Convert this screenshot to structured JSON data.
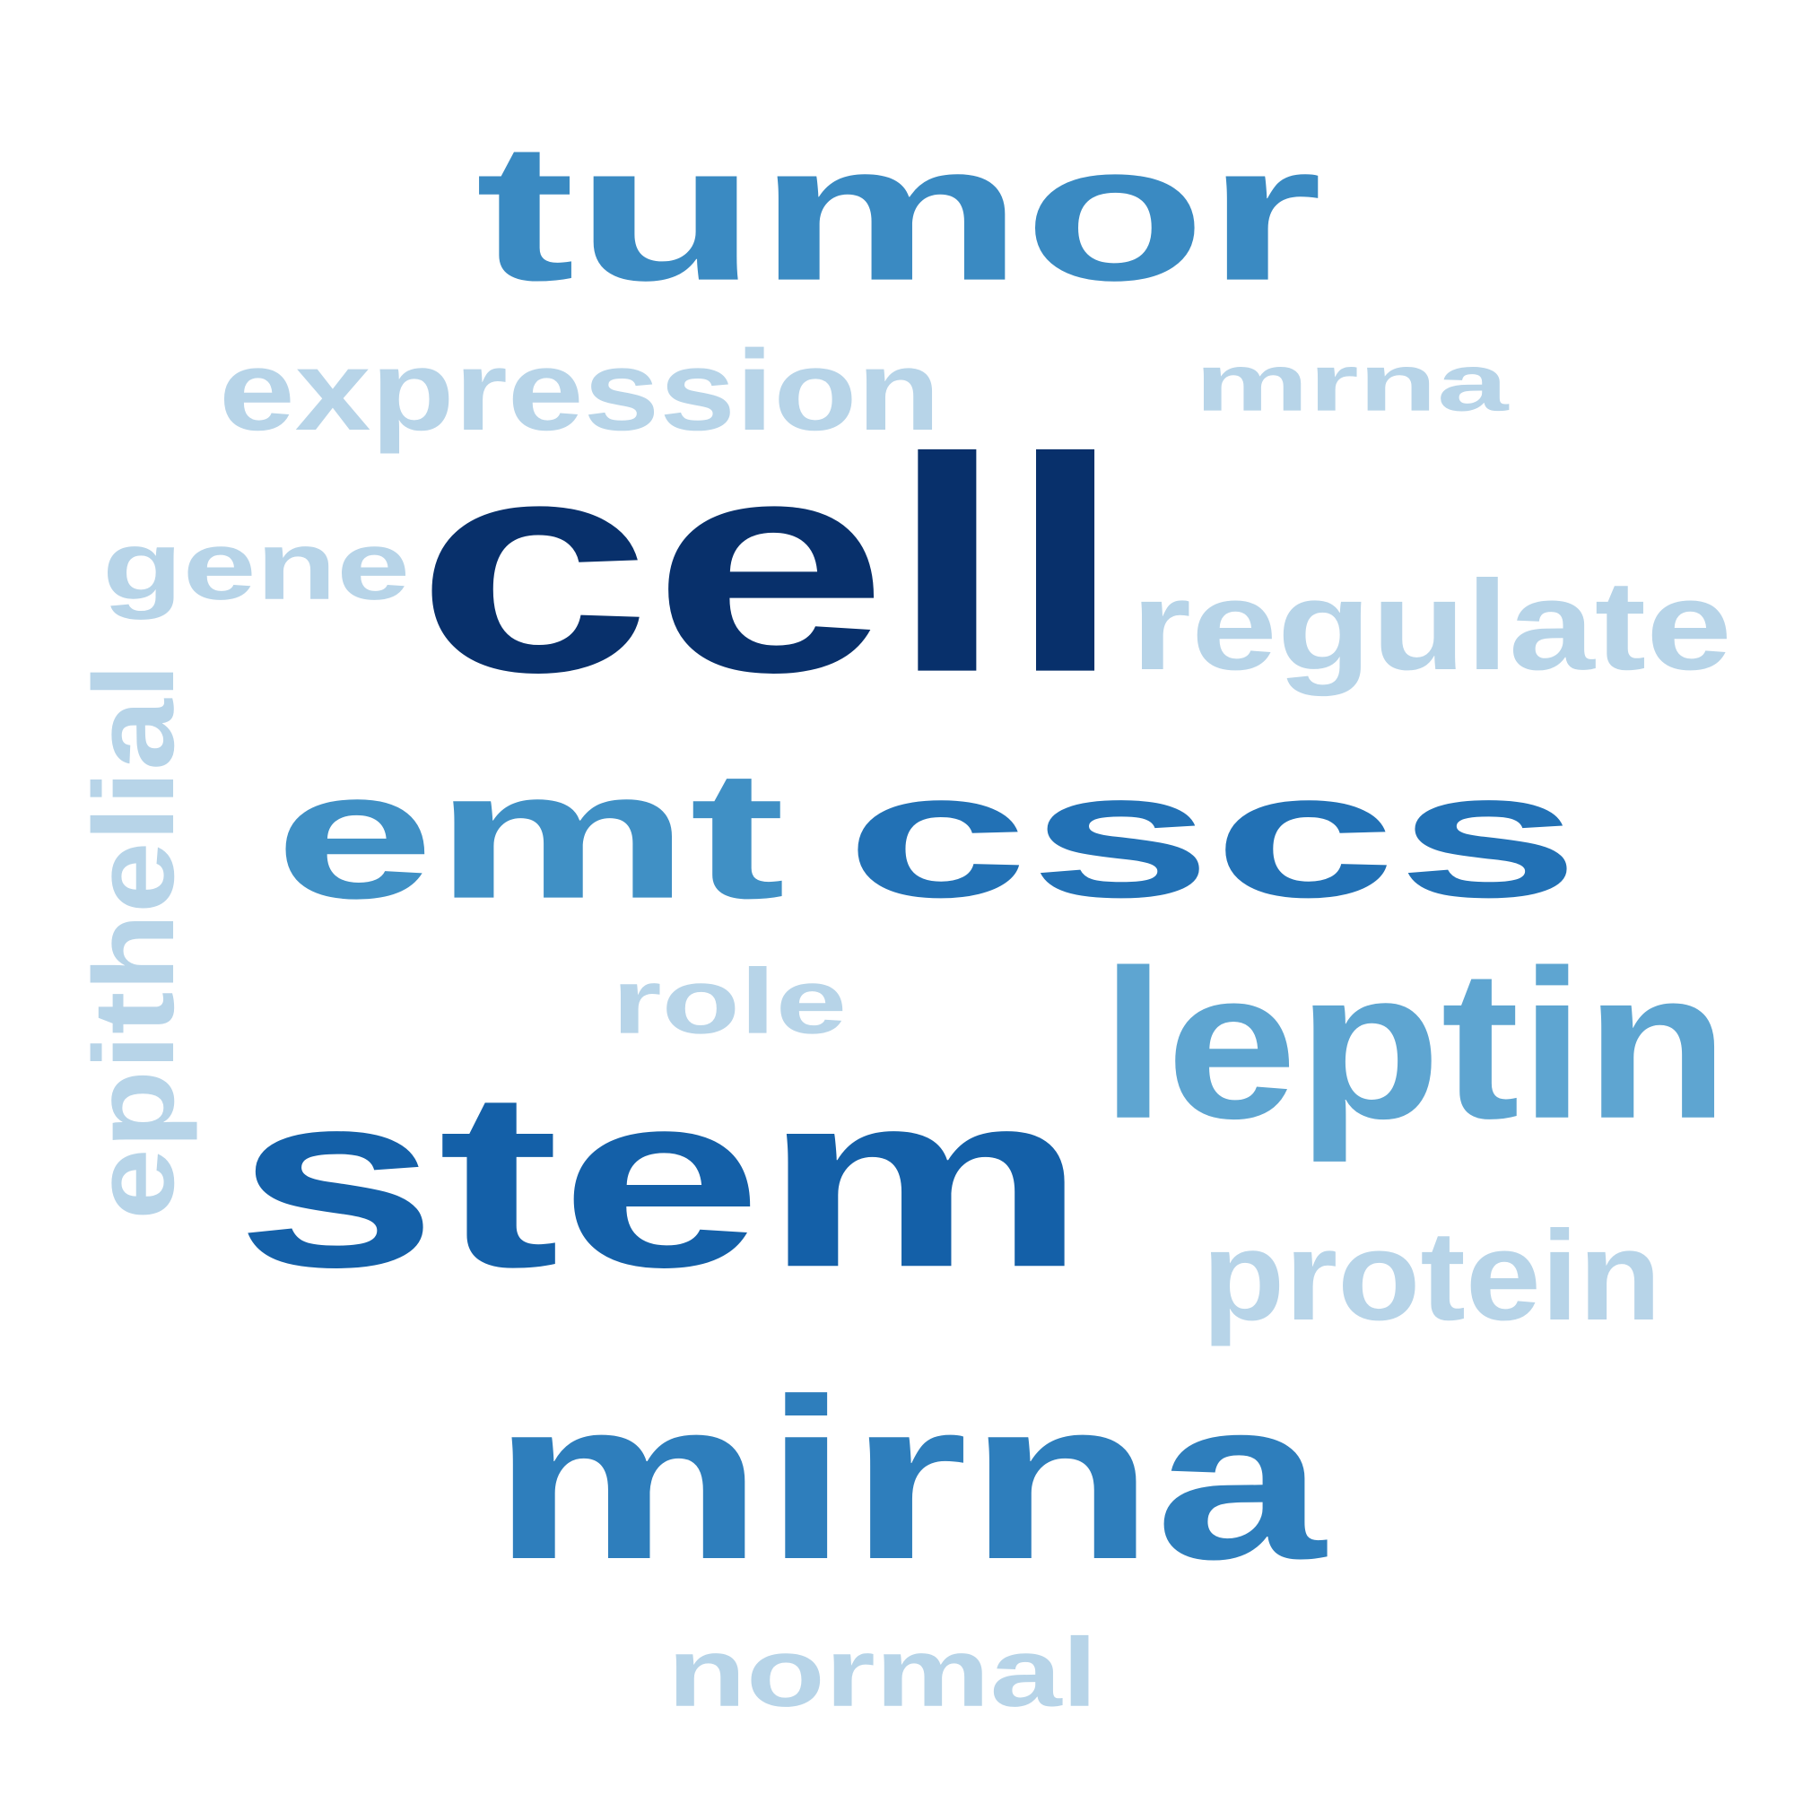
{
  "words": [
    {
      "key": "cell",
      "text": "cell",
      "color": "#08306b"
    },
    {
      "key": "stem",
      "text": "stem",
      "color": "#1460a8"
    },
    {
      "key": "cscs",
      "text": "cscs",
      "color": "#2271b5"
    },
    {
      "key": "mirna",
      "text": "mirna",
      "color": "#2e7ebc"
    },
    {
      "key": "tumor",
      "text": "tumor",
      "color": "#3a8ac2"
    },
    {
      "key": "emt",
      "text": "emt",
      "color": "#4090c5"
    },
    {
      "key": "leptin",
      "text": "leptin",
      "color": "#5ea5d1"
    },
    {
      "key": "expression",
      "text": "expression",
      "color": "#b7d4e8"
    },
    {
      "key": "mrna",
      "text": "mrna",
      "color": "#b7d4e8"
    },
    {
      "key": "gene",
      "text": "gene",
      "color": "#b7d4e8"
    },
    {
      "key": "regulate",
      "text": "regulate",
      "color": "#b7d4e8"
    },
    {
      "key": "epithelial",
      "text": "epithelial",
      "color": "#b7d4e8"
    },
    {
      "key": "role",
      "text": "role",
      "color": "#b7d4e8"
    },
    {
      "key": "protein",
      "text": "protein",
      "color": "#b7d4e8"
    },
    {
      "key": "normal",
      "text": "normal",
      "color": "#b7d4e8"
    }
  ]
}
